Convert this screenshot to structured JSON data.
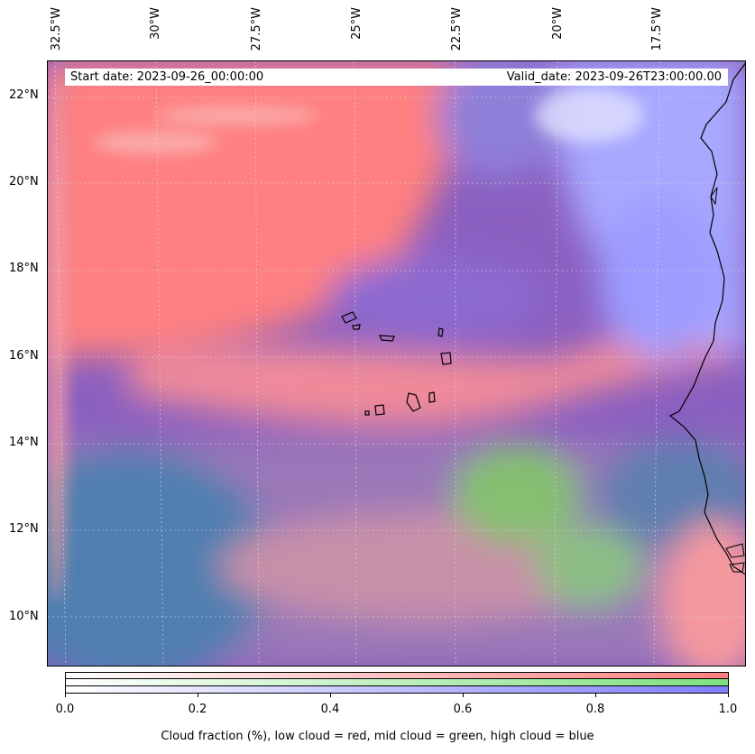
{
  "map": {
    "start_date": "Start date: 2023-09-26_00:00:00",
    "valid_date": "Valid_date: 2023-09-26T23:00:00.00",
    "longitude_labels": [
      "32.5°W",
      "30°W",
      "27.5°W",
      "25°W",
      "22.5°W",
      "20°W",
      "17.5°W"
    ],
    "latitude_labels": [
      "22°N",
      "20°N",
      "18°N",
      "16°N",
      "14°N",
      "12°N",
      "10°N"
    ],
    "layer_colors": {
      "low_cloud": "#ff7f7f",
      "mid_cloud": "#7fe07f",
      "high_cloud": "#7f7fff"
    }
  },
  "colorbar": {
    "tick_labels": [
      "0.0",
      "0.2",
      "0.4",
      "0.6",
      "0.8",
      "1.0"
    ],
    "caption": "Cloud fraction (%), low cloud = red, mid cloud = green, high cloud = blue"
  }
}
